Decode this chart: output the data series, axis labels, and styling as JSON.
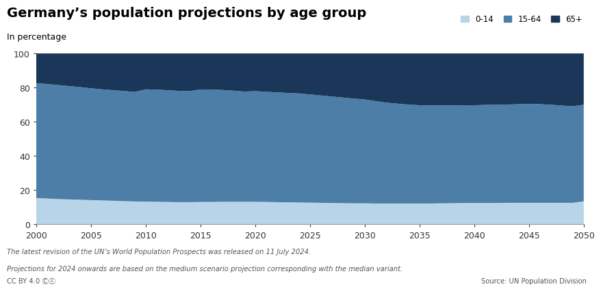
{
  "title": "Germany’s population projections by age group",
  "subtitle": "In percentage",
  "years": [
    2000,
    2001,
    2002,
    2003,
    2004,
    2005,
    2006,
    2007,
    2008,
    2009,
    2010,
    2011,
    2012,
    2013,
    2014,
    2015,
    2016,
    2017,
    2018,
    2019,
    2020,
    2021,
    2022,
    2023,
    2024,
    2025,
    2026,
    2027,
    2028,
    2029,
    2030,
    2031,
    2032,
    2033,
    2034,
    2035,
    2036,
    2037,
    2038,
    2039,
    2040,
    2041,
    2042,
    2043,
    2044,
    2045,
    2046,
    2047,
    2048,
    2049,
    2050
  ],
  "age_0_14": [
    15.4,
    15.1,
    14.8,
    14.6,
    14.4,
    14.2,
    14.0,
    13.8,
    13.6,
    13.4,
    13.3,
    13.2,
    13.1,
    13.0,
    13.0,
    13.1,
    13.1,
    13.2,
    13.2,
    13.2,
    13.2,
    13.1,
    13.0,
    12.9,
    12.8,
    12.7,
    12.6,
    12.5,
    12.4,
    12.3,
    12.3,
    12.2,
    12.2,
    12.2,
    12.2,
    12.2,
    12.2,
    12.3,
    12.4,
    12.5,
    12.5,
    12.5,
    12.5,
    12.6,
    12.6,
    12.6,
    12.6,
    12.6,
    12.6,
    12.6,
    13.5
  ],
  "age_15_64": [
    67.2,
    67.0,
    66.7,
    66.3,
    65.9,
    65.4,
    65.0,
    64.7,
    64.4,
    64.1,
    65.7,
    65.6,
    65.4,
    65.1,
    65.0,
    65.8,
    65.8,
    65.4,
    65.0,
    64.5,
    64.7,
    64.5,
    64.2,
    64.0,
    63.8,
    63.3,
    62.8,
    62.3,
    61.8,
    61.3,
    60.8,
    59.9,
    59.0,
    58.4,
    57.9,
    57.5,
    57.4,
    57.3,
    57.2,
    57.2,
    57.2,
    57.4,
    57.5,
    57.5,
    57.7,
    57.9,
    57.7,
    57.4,
    56.9,
    56.5,
    56.5
  ],
  "age_65p": [
    17.4,
    17.9,
    18.5,
    19.1,
    19.7,
    20.4,
    21.0,
    21.5,
    22.0,
    22.5,
    21.0,
    21.2,
    21.5,
    21.9,
    22.0,
    21.1,
    21.1,
    21.4,
    21.8,
    22.3,
    22.1,
    22.4,
    22.8,
    23.1,
    23.4,
    24.0,
    24.6,
    25.2,
    25.8,
    26.4,
    26.9,
    27.9,
    28.8,
    29.4,
    29.9,
    30.3,
    30.4,
    30.4,
    30.4,
    30.3,
    30.3,
    30.1,
    30.0,
    29.9,
    29.7,
    29.5,
    29.7,
    30.0,
    30.5,
    30.9,
    30.0
  ],
  "color_0_14": "#b8d4e8",
  "color_15_64": "#4d7ea8",
  "color_65p": "#1a3658",
  "legend_labels": [
    "0-14",
    "15-64",
    "65+"
  ],
  "footnote1": "The latest revision of the UN’s World Population Prospects was released on 11 July 2024.",
  "footnote2": "Projections for 2024 onwards are based on the medium scenario projection corresponding with the median variant.",
  "source": "Source: UN Population Division",
  "cc_text": "CC BY 4.0",
  "xlim": [
    2000,
    2050
  ],
  "ylim": [
    0,
    100
  ],
  "xticks": [
    2000,
    2005,
    2010,
    2015,
    2020,
    2025,
    2030,
    2035,
    2040,
    2045,
    2050
  ],
  "yticks": [
    0,
    20,
    40,
    60,
    80,
    100
  ]
}
